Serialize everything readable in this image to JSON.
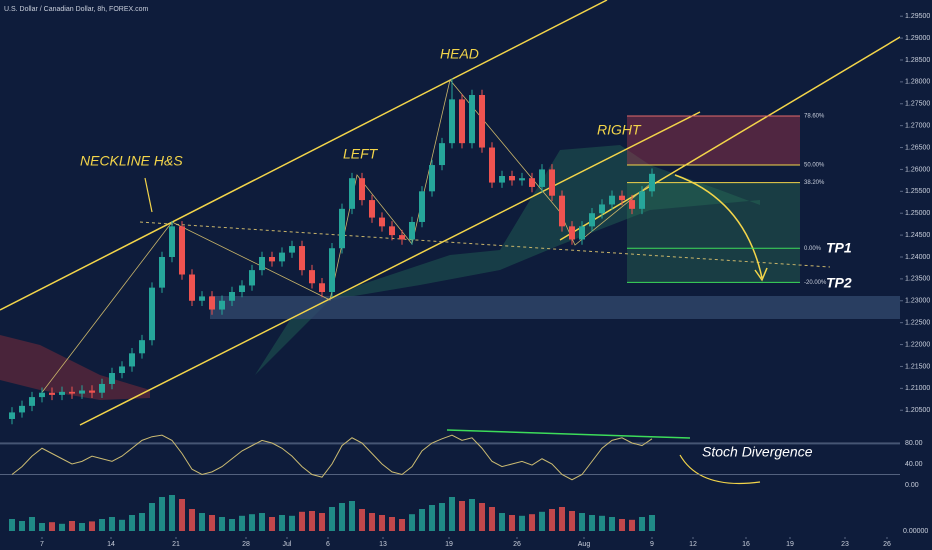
{
  "chart_data": {
    "type": "candlestick",
    "title": "U.S. Dollar / Canadian Dollar, 8h, FOREX.com",
    "ylim": [
      1.1982,
      1.2987
    ],
    "yticks": [
      {
        "value": 1.205,
        "label": "1.20500"
      },
      {
        "value": 1.21,
        "label": "1.21000"
      },
      {
        "value": 1.215,
        "label": "1.21500"
      },
      {
        "value": 1.22,
        "label": "1.22000"
      },
      {
        "value": 1.225,
        "label": "1.22500"
      },
      {
        "value": 1.23,
        "label": "1.23000"
      },
      {
        "value": 1.235,
        "label": "1.23500"
      },
      {
        "value": 1.24,
        "label": "1.24000"
      },
      {
        "value": 1.245,
        "label": "1.24500"
      },
      {
        "value": 1.25,
        "label": "1.25000"
      },
      {
        "value": 1.255,
        "label": "1.25500"
      },
      {
        "value": 1.26,
        "label": "1.26000"
      },
      {
        "value": 1.265,
        "label": "1.26500"
      },
      {
        "value": 1.27,
        "label": "1.27000"
      },
      {
        "value": 1.275,
        "label": "1.27500"
      },
      {
        "value": 1.28,
        "label": "1.28000"
      },
      {
        "value": 1.285,
        "label": "1.28500"
      },
      {
        "value": 1.29,
        "label": "1.29000"
      },
      {
        "value": 1.295,
        "label": "1.29500"
      }
    ],
    "xlim": [
      -1.2,
      88.8
    ],
    "xticks": [
      {
        "value": 3,
        "label": "7"
      },
      {
        "value": 9.9,
        "label": "14"
      },
      {
        "value": 16.4,
        "label": "21"
      },
      {
        "value": 23.4,
        "label": "28"
      },
      {
        "value": 27.5,
        "label": "Jul"
      },
      {
        "value": 31.6,
        "label": "6"
      },
      {
        "value": 37.1,
        "label": "13"
      },
      {
        "value": 43.7,
        "label": "19"
      },
      {
        "value": 50.5,
        "label": "26"
      },
      {
        "value": 57.2,
        "label": "Aug"
      },
      {
        "value": 64,
        "label": "9"
      },
      {
        "value": 68.1,
        "label": "12"
      },
      {
        "value": 73.4,
        "label": "16"
      },
      {
        "value": 77.8,
        "label": "19"
      },
      {
        "value": 83.3,
        "label": "23"
      },
      {
        "value": 87.5,
        "label": "26"
      }
    ],
    "up_color": "#26a69a",
    "down_color": "#ef5350",
    "candles": [
      [
        1.203,
        1.2057,
        1.2018,
        1.2045
      ],
      [
        1.2045,
        1.2072,
        1.2033,
        1.206
      ],
      [
        1.206,
        1.2092,
        1.2048,
        1.208
      ],
      [
        1.208,
        1.2102,
        1.2068,
        1.209
      ],
      [
        1.209,
        1.2102,
        1.2073,
        1.2085
      ],
      [
        1.2085,
        1.2104,
        1.2073,
        1.2092
      ],
      [
        1.2092,
        1.2104,
        1.2076,
        1.2088
      ],
      [
        1.2088,
        1.2107,
        1.2076,
        1.2095
      ],
      [
        1.2095,
        1.2107,
        1.2078,
        1.209
      ],
      [
        1.209,
        1.2122,
        1.2078,
        1.211
      ],
      [
        1.211,
        1.2147,
        1.2098,
        1.2135
      ],
      [
        1.2135,
        1.2162,
        1.2123,
        1.215
      ],
      [
        1.215,
        1.2192,
        1.2138,
        1.218
      ],
      [
        1.218,
        1.2222,
        1.2168,
        1.221
      ],
      [
        1.221,
        1.2342,
        1.2198,
        1.233
      ],
      [
        1.233,
        1.2412,
        1.2318,
        1.24
      ],
      [
        1.24,
        1.2482,
        1.2388,
        1.247
      ],
      [
        1.247,
        1.2482,
        1.2348,
        1.236
      ],
      [
        1.236,
        1.2372,
        1.2288,
        1.23
      ],
      [
        1.23,
        1.2322,
        1.2288,
        1.231
      ],
      [
        1.231,
        1.2322,
        1.2268,
        1.228
      ],
      [
        1.228,
        1.2312,
        1.2268,
        1.23
      ],
      [
        1.23,
        1.2332,
        1.2288,
        1.232
      ],
      [
        1.232,
        1.2347,
        1.2308,
        1.2335
      ],
      [
        1.2335,
        1.2382,
        1.2323,
        1.237
      ],
      [
        1.237,
        1.2412,
        1.2358,
        1.24
      ],
      [
        1.24,
        1.2412,
        1.2378,
        1.239
      ],
      [
        1.239,
        1.2422,
        1.2378,
        1.241
      ],
      [
        1.241,
        1.2437,
        1.2398,
        1.2425
      ],
      [
        1.2425,
        1.2437,
        1.2358,
        1.237
      ],
      [
        1.237,
        1.2382,
        1.2328,
        1.234
      ],
      [
        1.234,
        1.2352,
        1.2308,
        1.232
      ],
      [
        1.232,
        1.2432,
        1.2308,
        1.242
      ],
      [
        1.242,
        1.2522,
        1.2408,
        1.251
      ],
      [
        1.251,
        1.2592,
        1.2498,
        1.258
      ],
      [
        1.258,
        1.2592,
        1.2518,
        1.253
      ],
      [
        1.253,
        1.2542,
        1.2478,
        1.249
      ],
      [
        1.249,
        1.2502,
        1.2458,
        1.247
      ],
      [
        1.247,
        1.2482,
        1.2438,
        1.245
      ],
      [
        1.245,
        1.2462,
        1.2428,
        1.244
      ],
      [
        1.244,
        1.2492,
        1.2428,
        1.248
      ],
      [
        1.248,
        1.2562,
        1.2468,
        1.255
      ],
      [
        1.255,
        1.2622,
        1.2538,
        1.261
      ],
      [
        1.261,
        1.2672,
        1.2598,
        1.266
      ],
      [
        1.266,
        1.2808,
        1.2648,
        1.276
      ],
      [
        1.276,
        1.2772,
        1.2648,
        1.266
      ],
      [
        1.266,
        1.2782,
        1.2648,
        1.277
      ],
      [
        1.277,
        1.2782,
        1.2638,
        1.265
      ],
      [
        1.265,
        1.2662,
        1.2558,
        1.257
      ],
      [
        1.257,
        1.2597,
        1.2558,
        1.2585
      ],
      [
        1.2585,
        1.2597,
        1.2563,
        1.2575
      ],
      [
        1.2575,
        1.2592,
        1.2563,
        1.258
      ],
      [
        1.258,
        1.2592,
        1.2548,
        1.256
      ],
      [
        1.256,
        1.2612,
        1.2548,
        1.26
      ],
      [
        1.26,
        1.2612,
        1.2528,
        1.254
      ],
      [
        1.254,
        1.2552,
        1.2458,
        1.247
      ],
      [
        1.247,
        1.2482,
        1.2428,
        1.244
      ],
      [
        1.244,
        1.2482,
        1.2428,
        1.247
      ],
      [
        1.247,
        1.2512,
        1.2458,
        1.25
      ],
      [
        1.25,
        1.2532,
        1.2488,
        1.252
      ],
      [
        1.252,
        1.2552,
        1.2508,
        1.254
      ],
      [
        1.254,
        1.2552,
        1.2518,
        1.253
      ],
      [
        1.253,
        1.2542,
        1.2498,
        1.251
      ],
      [
        1.251,
        1.2562,
        1.2498,
        1.255
      ],
      [
        1.255,
        1.2602,
        1.2538,
        1.259
      ]
    ],
    "fib": {
      "prices": [
        1.2722,
        1.261,
        1.257,
        1.242,
        1.2342
      ],
      "values": [
        78.6,
        50,
        38.2,
        0,
        -20
      ],
      "value_labels": [
        "78.60%",
        "50.00%",
        "38.20%",
        "0.00%",
        "-20.00%"
      ],
      "colors": [
        "#e26a6a",
        "#f3d54a",
        "#f3d54a",
        "#3ddc5a",
        "#3ddc5a"
      ]
    },
    "annotations": {
      "head": "HEAD",
      "left": "LEFT",
      "right": "RIGHT",
      "neckline": "NECKLINE H&S",
      "tp1": "TP1",
      "tp2": "TP2",
      "stoch": "Stoch Divergence"
    },
    "stoch": {
      "ylim": [
        0,
        80
      ],
      "yticks": [
        {
          "value": 80,
          "label": "80.00"
        },
        {
          "value": 40,
          "label": "40.00"
        },
        {
          "value": 0,
          "label": "0.00"
        }
      ],
      "bands": [
        80,
        20
      ],
      "color": "#cbbb72",
      "values": [
        20,
        35,
        55,
        70,
        60,
        50,
        40,
        45,
        55,
        50,
        45,
        55,
        70,
        85,
        92,
        95,
        85,
        60,
        30,
        20,
        25,
        35,
        50,
        65,
        75,
        85,
        80,
        70,
        55,
        35,
        20,
        15,
        40,
        75,
        90,
        80,
        60,
        40,
        25,
        20,
        35,
        65,
        80,
        88,
        95,
        85,
        90,
        70,
        45,
        35,
        40,
        45,
        38,
        50,
        40,
        20,
        10,
        20,
        45,
        70,
        85,
        90,
        80,
        75,
        88
      ]
    },
    "volume": {
      "ylim": [
        0,
        100
      ],
      "yticks": [
        {
          "value": 0,
          "label": "0.00000"
        }
      ],
      "values": [
        30,
        25,
        35,
        20,
        22,
        18,
        25,
        20,
        24,
        30,
        35,
        28,
        40,
        45,
        70,
        85,
        90,
        80,
        55,
        45,
        40,
        35,
        30,
        38,
        42,
        45,
        35,
        40,
        38,
        48,
        50,
        45,
        60,
        70,
        75,
        55,
        45,
        40,
        35,
        30,
        42,
        55,
        65,
        70,
        85,
        75,
        80,
        70,
        60,
        45,
        40,
        38,
        42,
        48,
        55,
        60,
        50,
        45,
        40,
        38,
        35,
        30,
        28,
        35,
        40
      ]
    }
  }
}
